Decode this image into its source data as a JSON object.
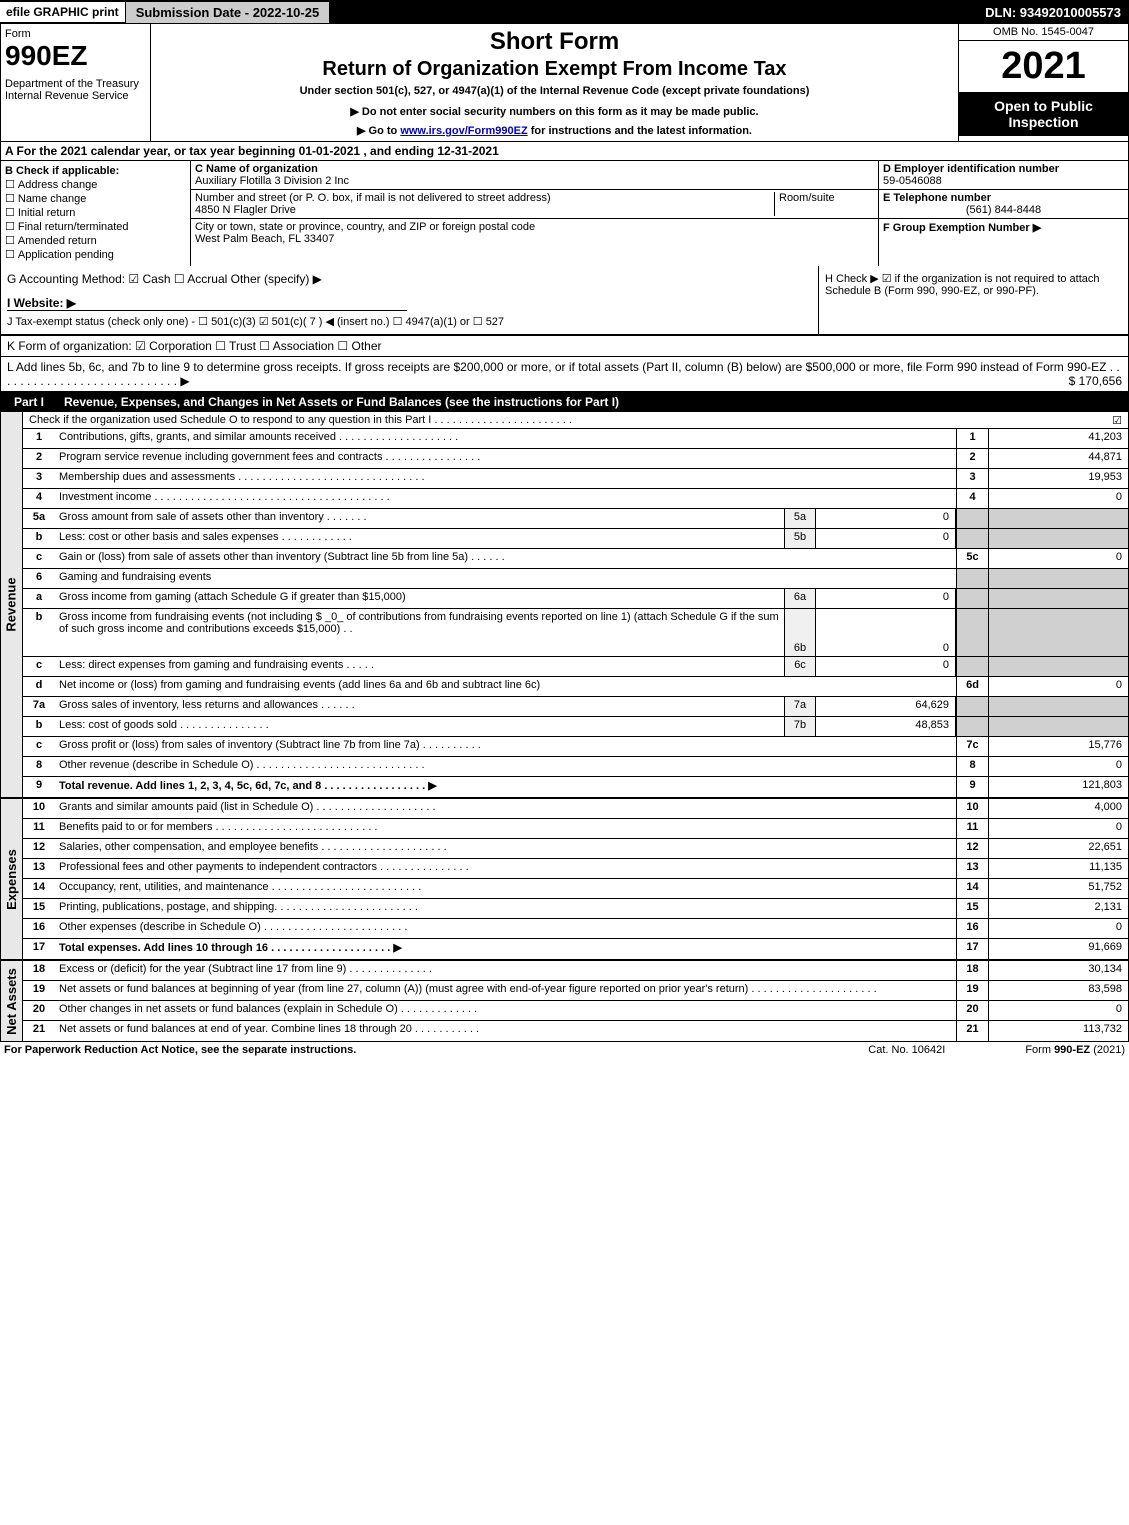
{
  "top": {
    "efile": "efile GRAPHIC print",
    "sub_date": "Submission Date - 2022-10-25",
    "dln": "DLN: 93492010005573"
  },
  "header": {
    "form_word": "Form",
    "form_num": "990EZ",
    "dept": "Department of the Treasury\nInternal Revenue Service",
    "short": "Short Form",
    "title": "Return of Organization Exempt From Income Tax",
    "under": "Under section 501(c), 527, or 4947(a)(1) of the Internal Revenue Code (except private foundations)",
    "note": "▶ Do not enter social security numbers on this form as it may be made public.",
    "goto_pre": "▶ Go to ",
    "goto_link": "www.irs.gov/Form990EZ",
    "goto_post": " for instructions and the latest information.",
    "omb": "OMB No. 1545-0047",
    "year": "2021",
    "open": "Open to Public Inspection"
  },
  "section_a": "A  For the 2021 calendar year, or tax year beginning 01-01-2021  , and ending 12-31-2021",
  "section_b": {
    "title": "B  Check if applicable:",
    "items": [
      "Address change",
      "Name change",
      "Initial return",
      "Final return/terminated",
      "Amended return",
      "Application pending"
    ]
  },
  "section_c": {
    "name_label": "C Name of organization",
    "name": "Auxiliary Flotilla 3 Division 2 Inc",
    "street_label": "Number and street (or P. O. box, if mail is not delivered to street address)",
    "room_label": "Room/suite",
    "street": "4850 N Flagler Drive",
    "city_label": "City or town, state or province, country, and ZIP or foreign postal code",
    "city": "West Palm Beach, FL  33407"
  },
  "section_d": {
    "ein_label": "D Employer identification number",
    "ein": "59-0546088",
    "tel_label": "E Telephone number",
    "tel": "(561) 844-8448",
    "grp_label": "F Group Exemption Number  ▶"
  },
  "section_g": "G Accounting Method:   ☑ Cash  ☐ Accrual  Other (specify) ▶",
  "section_h": "H  Check ▶  ☑  if the organization is not required to attach Schedule B (Form 990, 990-EZ, or 990-PF).",
  "section_i": "I Website: ▶",
  "section_j": "J Tax-exempt status (check only one) - ☐ 501(c)(3) ☑ 501(c)( 7 ) ◀ (insert no.) ☐ 4947(a)(1) or ☐ 527",
  "section_k": "K Form of organization:  ☑ Corporation  ☐ Trust  ☐ Association  ☐ Other",
  "section_l": {
    "text": "L Add lines 5b, 6c, and 7b to line 9 to determine gross receipts. If gross receipts are $200,000 or more, or if total assets (Part II, column (B) below) are $500,000 or more, file Form 990 instead of Form 990-EZ  .  .  .  .  .  .  .  .  .  .  .  .  .  .  .  .  .  .  .  .  .  .  .  .  .  .  .  .  ▶",
    "amount": "$ 170,656"
  },
  "part1": {
    "num": "Part I",
    "title": "Revenue, Expenses, and Changes in Net Assets or Fund Balances (see the instructions for Part I)",
    "check_text": "Check if the organization used Schedule O to respond to any question in this Part I  .  .  .  .  .  .  .  .  .  .  .  .  .  .  .  .  .  .  .  .  .  .  .",
    "check_mark": "☑"
  },
  "sides": {
    "rev": "Revenue",
    "exp": "Expenses",
    "net": "Net Assets"
  },
  "rev_lines": [
    {
      "ln": "1",
      "desc": "Contributions, gifts, grants, and similar amounts received  .  .  .  .  .  .  .  .  .  .  .  .  .  .  .  .  .  .  .  .",
      "num": "1",
      "val": "41,203"
    },
    {
      "ln": "2",
      "desc": "Program service revenue including government fees and contracts  .  .  .  .  .  .  .  .  .  .  .  .  .  .  .  .",
      "num": "2",
      "val": "44,871"
    },
    {
      "ln": "3",
      "desc": "Membership dues and assessments  .  .  .  .  .  .  .  .  .  .  .  .  .  .  .  .  .  .  .  .  .  .  .  .  .  .  .  .  .  .  .",
      "num": "3",
      "val": "19,953"
    },
    {
      "ln": "4",
      "desc": "Investment income  .  .  .  .  .  .  .  .  .  .  .  .  .  .  .  .  .  .  .  .  .  .  .  .  .  .  .  .  .  .  .  .  .  .  .  .  .  .  .",
      "num": "4",
      "val": "0"
    }
  ],
  "line5a": {
    "ln": "5a",
    "desc": "Gross amount from sale of assets other than inventory  .  .  .  .  .  .  .",
    "sub": "5a",
    "subval": "0"
  },
  "line5b": {
    "ln": "b",
    "desc": "Less: cost or other basis and sales expenses  .  .  .  .  .  .  .  .  .  .  .  .",
    "sub": "5b",
    "subval": "0"
  },
  "line5c": {
    "ln": "c",
    "desc": "Gain or (loss) from sale of assets other than inventory (Subtract line 5b from line 5a)  .  .  .  .  .  .",
    "num": "5c",
    "val": "0"
  },
  "line6": {
    "ln": "6",
    "desc": "Gaming and fundraising events"
  },
  "line6a": {
    "ln": "a",
    "desc": "Gross income from gaming (attach Schedule G if greater than $15,000)",
    "sub": "6a",
    "subval": "0"
  },
  "line6b": {
    "ln": "b",
    "desc": "Gross income from fundraising events (not including $ _0_ of contributions from fundraising events reported on line 1) (attach Schedule G if the sum of such gross income and contributions exceeds $15,000)   .  .",
    "sub": "6b",
    "subval": "0"
  },
  "line6c": {
    "ln": "c",
    "desc": "Less: direct expenses from gaming and fundraising events  .  .  .  .  .",
    "sub": "6c",
    "subval": "0"
  },
  "line6d": {
    "ln": "d",
    "desc": "Net income or (loss) from gaming and fundraising events (add lines 6a and 6b and subtract line 6c)",
    "num": "6d",
    "val": "0"
  },
  "line7a": {
    "ln": "7a",
    "desc": "Gross sales of inventory, less returns and allowances  .  .  .  .  .  .",
    "sub": "7a",
    "subval": "64,629"
  },
  "line7b": {
    "ln": "b",
    "desc": "Less: cost of goods sold        .  .  .  .  .  .  .  .  .  .  .  .  .  .  .",
    "sub": "7b",
    "subval": "48,853"
  },
  "line7c": {
    "ln": "c",
    "desc": "Gross profit or (loss) from sales of inventory (Subtract line 7b from line 7a)  .  .  .  .  .  .  .  .  .  .",
    "num": "7c",
    "val": "15,776"
  },
  "line8": {
    "ln": "8",
    "desc": "Other revenue (describe in Schedule O)  .  .  .  .  .  .  .  .  .  .  .  .  .  .  .  .  .  .  .  .  .  .  .  .  .  .  .  .",
    "num": "8",
    "val": "0"
  },
  "line9": {
    "ln": "9",
    "desc": "Total revenue. Add lines 1, 2, 3, 4, 5c, 6d, 7c, and 8   .  .  .  .  .  .  .  .  .  .  .  .  .  .  .  .  .   ▶",
    "num": "9",
    "val": "121,803"
  },
  "exp_lines": [
    {
      "ln": "10",
      "desc": "Grants and similar amounts paid (list in Schedule O)  .  .  .  .  .  .  .  .  .  .  .  .  .  .  .  .  .  .  .  .",
      "num": "10",
      "val": "4,000"
    },
    {
      "ln": "11",
      "desc": "Benefits paid to or for members       .  .  .  .  .  .  .  .  .  .  .  .  .  .  .  .  .  .  .  .  .  .  .  .  .  .  .",
      "num": "11",
      "val": "0"
    },
    {
      "ln": "12",
      "desc": "Salaries, other compensation, and employee benefits  .  .  .  .  .  .  .  .  .  .  .  .  .  .  .  .  .  .  .  .  .",
      "num": "12",
      "val": "22,651"
    },
    {
      "ln": "13",
      "desc": "Professional fees and other payments to independent contractors  .  .  .  .  .  .  .  .  .  .  .  .  .  .  .",
      "num": "13",
      "val": "11,135"
    },
    {
      "ln": "14",
      "desc": "Occupancy, rent, utilities, and maintenance  .  .  .  .  .  .  .  .  .  .  .  .  .  .  .  .  .  .  .  .  .  .  .  .  .",
      "num": "14",
      "val": "51,752"
    },
    {
      "ln": "15",
      "desc": "Printing, publications, postage, and shipping.   .  .  .  .  .  .  .  .  .  .  .  .  .  .  .  .  .  .  .  .  .  .  .",
      "num": "15",
      "val": "2,131"
    },
    {
      "ln": "16",
      "desc": "Other expenses (describe in Schedule O)     .  .  .  .  .  .  .  .  .  .  .  .  .  .  .  .  .  .  .  .  .  .  .  .",
      "num": "16",
      "val": "0"
    },
    {
      "ln": "17",
      "desc": "Total expenses. Add lines 10 through 16      .  .  .  .  .  .  .  .  .  .  .  .  .  .  .  .  .  .  .  .   ▶",
      "num": "17",
      "val": "91,669"
    }
  ],
  "net_lines": [
    {
      "ln": "18",
      "desc": "Excess or (deficit) for the year (Subtract line 17 from line 9)       .  .  .  .  .  .  .  .  .  .  .  .  .  .",
      "num": "18",
      "val": "30,134"
    },
    {
      "ln": "19",
      "desc": "Net assets or fund balances at beginning of year (from line 27, column (A)) (must agree with end-of-year figure reported on prior year's return)  .  .  .  .  .  .  .  .  .  .  .  .  .  .  .  .  .  .  .  .  .",
      "num": "19",
      "val": "83,598"
    },
    {
      "ln": "20",
      "desc": "Other changes in net assets or fund balances (explain in Schedule O)  .  .  .  .  .  .  .  .  .  .  .  .  .",
      "num": "20",
      "val": "0"
    },
    {
      "ln": "21",
      "desc": "Net assets or fund balances at end of year. Combine lines 18 through 20  .  .  .  .  .  .  .  .  .  .  .",
      "num": "21",
      "val": "113,732"
    }
  ],
  "footer": {
    "left": "For Paperwork Reduction Act Notice, see the separate instructions.",
    "mid": "Cat. No. 10642I",
    "right_pre": "Form ",
    "right_bold": "990-EZ",
    "right_post": " (2021)"
  }
}
